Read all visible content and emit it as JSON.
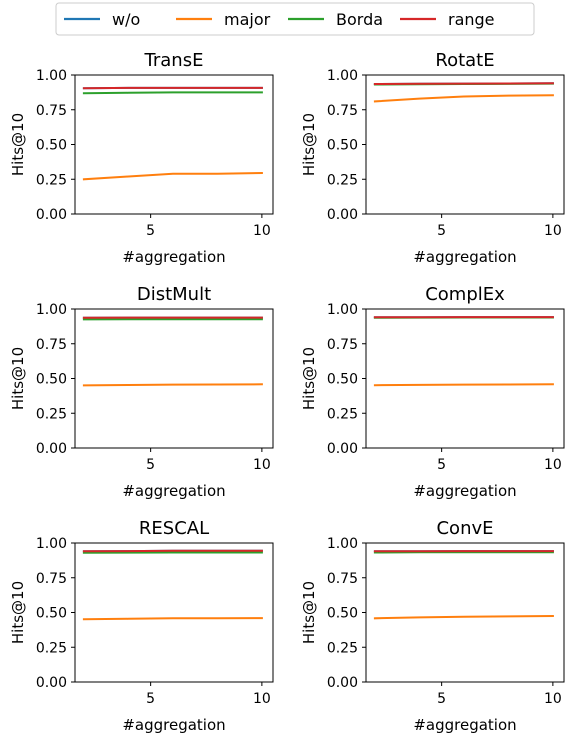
{
  "legend": {
    "placement": "top-center",
    "entries": [
      {
        "label": "w/o",
        "color": "#1f77b4"
      },
      {
        "label": "major",
        "color": "#ff7f0e"
      },
      {
        "label": "Borda",
        "color": "#2ca02c"
      },
      {
        "label": "range",
        "color": "#d62728"
      }
    ]
  },
  "chart_data": [
    {
      "type": "line",
      "title": "TransE",
      "xlabel": "#aggregation",
      "ylabel": "Hits@10",
      "x": [
        2,
        4,
        6,
        8,
        10
      ],
      "xlim": [
        1.6,
        10.5
      ],
      "ylim": [
        0,
        1.0
      ],
      "xticks": [
        "5",
        "10"
      ],
      "yticks": [
        "0.00",
        "0.25",
        "0.50",
        "0.75",
        "1.00"
      ],
      "grid": false,
      "series": [
        {
          "name": "w/o",
          "color": "#1f77b4",
          "values": [
            0.905,
            0.907,
            0.907,
            0.907,
            0.907
          ]
        },
        {
          "name": "major",
          "color": "#ff7f0e",
          "values": [
            0.25,
            0.27,
            0.29,
            0.29,
            0.295
          ]
        },
        {
          "name": "Borda",
          "color": "#2ca02c",
          "values": [
            0.868,
            0.872,
            0.875,
            0.875,
            0.875
          ]
        },
        {
          "name": "range",
          "color": "#d62728",
          "values": [
            0.905,
            0.907,
            0.907,
            0.907,
            0.907
          ]
        }
      ]
    },
    {
      "type": "line",
      "title": "RotatE",
      "xlabel": "#aggregation",
      "ylabel": "Hits@10",
      "x": [
        2,
        4,
        6,
        8,
        10
      ],
      "xlim": [
        1.6,
        10.5
      ],
      "ylim": [
        0,
        1.0
      ],
      "xticks": [
        "5",
        "10"
      ],
      "yticks": [
        "0.00",
        "0.25",
        "0.50",
        "0.75",
        "1.00"
      ],
      "grid": false,
      "series": [
        {
          "name": "w/o",
          "color": "#1f77b4",
          "values": [
            0.935,
            0.937,
            0.938,
            0.939,
            0.94
          ]
        },
        {
          "name": "major",
          "color": "#ff7f0e",
          "values": [
            0.81,
            0.83,
            0.845,
            0.852,
            0.855
          ]
        },
        {
          "name": "Borda",
          "color": "#2ca02c",
          "values": [
            0.932,
            0.934,
            0.935,
            0.936,
            0.938
          ]
        },
        {
          "name": "range",
          "color": "#d62728",
          "values": [
            0.935,
            0.937,
            0.938,
            0.939,
            0.94
          ]
        }
      ]
    },
    {
      "type": "line",
      "title": "DistMult",
      "xlabel": "#aggregation",
      "ylabel": "Hits@10",
      "x": [
        2,
        4,
        6,
        8,
        10
      ],
      "xlim": [
        1.6,
        10.5
      ],
      "ylim": [
        0,
        1.0
      ],
      "xticks": [
        "5",
        "10"
      ],
      "yticks": [
        "0.00",
        "0.25",
        "0.50",
        "0.75",
        "1.00"
      ],
      "grid": false,
      "series": [
        {
          "name": "w/o",
          "color": "#1f77b4",
          "values": [
            0.937,
            0.938,
            0.938,
            0.938,
            0.938
          ]
        },
        {
          "name": "major",
          "color": "#ff7f0e",
          "values": [
            0.45,
            0.453,
            0.456,
            0.457,
            0.458
          ]
        },
        {
          "name": "Borda",
          "color": "#2ca02c",
          "values": [
            0.925,
            0.926,
            0.926,
            0.926,
            0.926
          ]
        },
        {
          "name": "range",
          "color": "#d62728",
          "values": [
            0.937,
            0.938,
            0.938,
            0.938,
            0.938
          ]
        }
      ]
    },
    {
      "type": "line",
      "title": "ComplEx",
      "xlabel": "#aggregation",
      "ylabel": "Hits@10",
      "x": [
        2,
        4,
        6,
        8,
        10
      ],
      "xlim": [
        1.6,
        10.5
      ],
      "ylim": [
        0,
        1.0
      ],
      "xticks": [
        "5",
        "10"
      ],
      "yticks": [
        "0.00",
        "0.25",
        "0.50",
        "0.75",
        "1.00"
      ],
      "grid": false,
      "series": [
        {
          "name": "w/o",
          "color": "#1f77b4",
          "values": [
            0.94,
            0.941,
            0.942,
            0.942,
            0.942
          ]
        },
        {
          "name": "major",
          "color": "#ff7f0e",
          "values": [
            0.452,
            0.454,
            0.456,
            0.457,
            0.458
          ]
        },
        {
          "name": "Borda",
          "color": "#2ca02c",
          "values": [
            0.937,
            0.938,
            0.939,
            0.939,
            0.939
          ]
        },
        {
          "name": "range",
          "color": "#d62728",
          "values": [
            0.94,
            0.941,
            0.942,
            0.942,
            0.942
          ]
        }
      ]
    },
    {
      "type": "line",
      "title": "RESCAL",
      "xlabel": "#aggregation",
      "ylabel": "Hits@10",
      "x": [
        2,
        4,
        6,
        8,
        10
      ],
      "xlim": [
        1.6,
        10.5
      ],
      "ylim": [
        0,
        1.0
      ],
      "xticks": [
        "5",
        "10"
      ],
      "yticks": [
        "0.00",
        "0.25",
        "0.50",
        "0.75",
        "1.00"
      ],
      "grid": false,
      "series": [
        {
          "name": "w/o",
          "color": "#1f77b4",
          "values": [
            0.94,
            0.942,
            0.944,
            0.944,
            0.944
          ]
        },
        {
          "name": "major",
          "color": "#ff7f0e",
          "values": [
            0.452,
            0.455,
            0.458,
            0.459,
            0.46
          ]
        },
        {
          "name": "Borda",
          "color": "#2ca02c",
          "values": [
            0.93,
            0.931,
            0.932,
            0.932,
            0.932
          ]
        },
        {
          "name": "range",
          "color": "#d62728",
          "values": [
            0.94,
            0.942,
            0.944,
            0.944,
            0.944
          ]
        }
      ]
    },
    {
      "type": "line",
      "title": "ConvE",
      "xlabel": "#aggregation",
      "ylabel": "Hits@10",
      "x": [
        2,
        4,
        6,
        8,
        10
      ],
      "xlim": [
        1.6,
        10.5
      ],
      "ylim": [
        0,
        1.0
      ],
      "xticks": [
        "5",
        "10"
      ],
      "yticks": [
        "0.00",
        "0.25",
        "0.50",
        "0.75",
        "1.00"
      ],
      "grid": false,
      "series": [
        {
          "name": "w/o",
          "color": "#1f77b4",
          "values": [
            0.94,
            0.941,
            0.942,
            0.942,
            0.942
          ]
        },
        {
          "name": "major",
          "color": "#ff7f0e",
          "values": [
            0.458,
            0.465,
            0.47,
            0.472,
            0.475
          ]
        },
        {
          "name": "Borda",
          "color": "#2ca02c",
          "values": [
            0.932,
            0.933,
            0.934,
            0.934,
            0.934
          ]
        },
        {
          "name": "range",
          "color": "#d62728",
          "values": [
            0.94,
            0.941,
            0.942,
            0.942,
            0.942
          ]
        }
      ]
    }
  ]
}
